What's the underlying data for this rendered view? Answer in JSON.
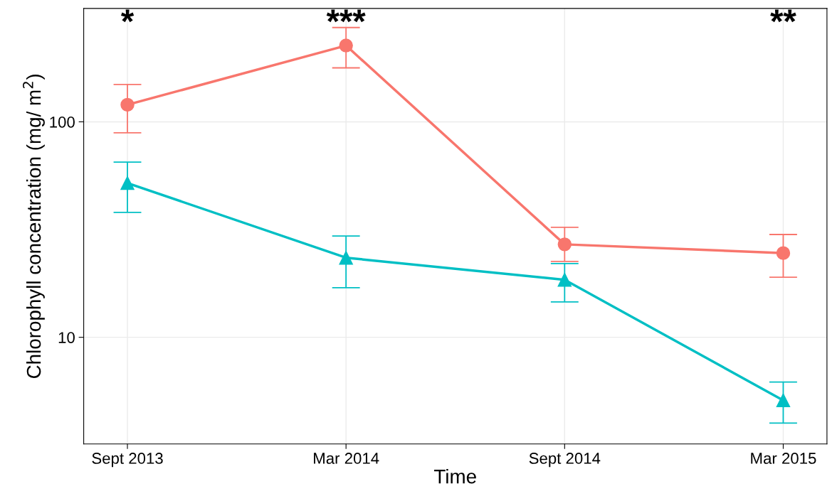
{
  "chart_data": {
    "type": "line",
    "xlabel": "Time",
    "ylabel": "Chlorophyll concentration (mg/ m$^{2}$)",
    "categories": [
      "Sept 2013",
      "Mar 2014",
      "Sept 2014",
      "Mar 2015"
    ],
    "series": [
      {
        "color": "#f8766d",
        "marker": "circle",
        "values": [
          120,
          226,
          27,
          24.6
        ],
        "errors": [
          [
            89,
            149
          ],
          [
            178,
            274
          ],
          [
            22.5,
            32.4
          ],
          [
            19,
            30
          ]
        ]
      },
      {
        "color": "#00bfc4",
        "marker": "triangle",
        "values": [
          52,
          23.4,
          18.5,
          5.1
        ],
        "errors": [
          [
            38,
            65
          ],
          [
            17,
            29.5
          ],
          [
            14.6,
            22
          ],
          [
            4.0,
            6.2
          ]
        ]
      }
    ],
    "log": "y",
    "ylim": [
      3.2,
      336
    ],
    "yticks": [
      10,
      100
    ],
    "grid": true,
    "line_style": "solid",
    "annotations": [
      "*",
      "***",
      "**"
    ]
  }
}
